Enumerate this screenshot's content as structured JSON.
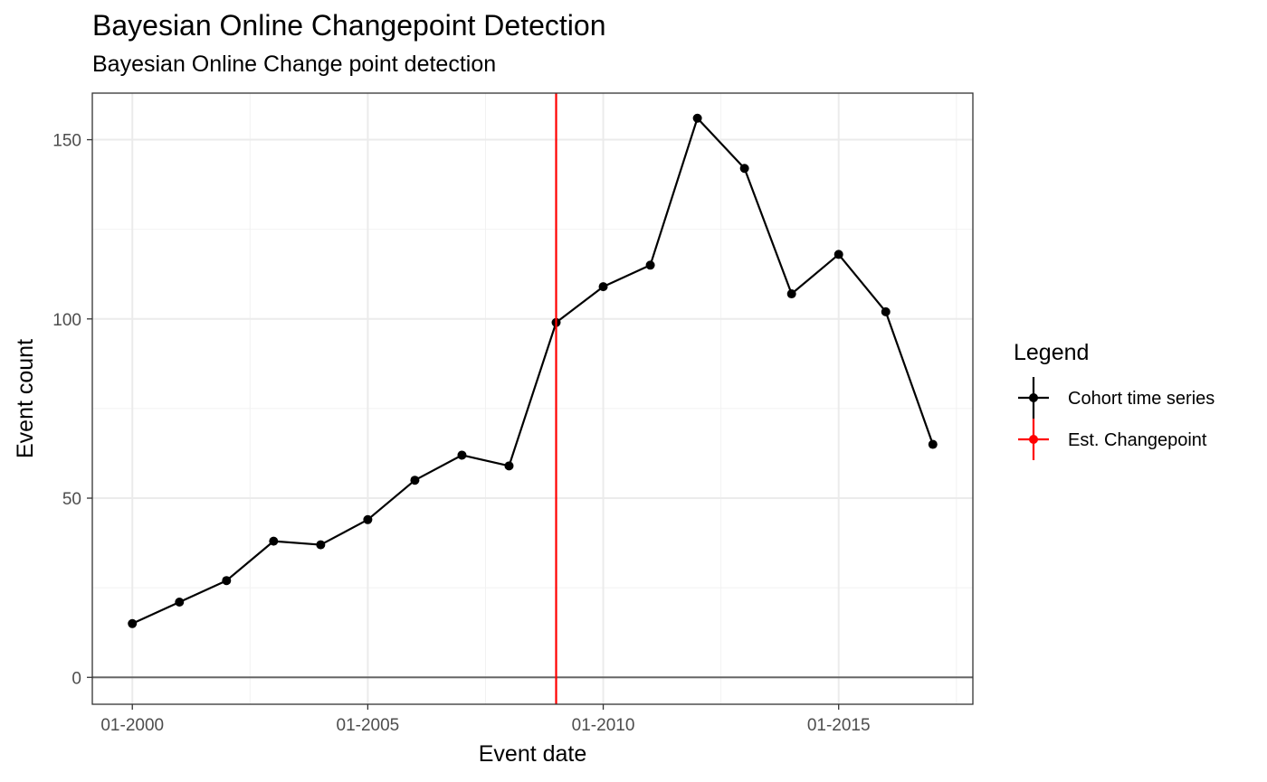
{
  "chart_data": {
    "type": "line",
    "title": "Bayesian Online Changepoint Detection",
    "subtitle": "Bayesian Online Change point detection",
    "xlabel": "Event date",
    "ylabel": "Event count",
    "x_tick_labels": [
      "01-2000",
      "01-2005",
      "01-2010",
      "01-2015"
    ],
    "y_tick_labels": [
      "0",
      "50",
      "100",
      "150"
    ],
    "ylim": [
      -7.5,
      163
    ],
    "grid": true,
    "legend_position": "right",
    "legend": {
      "title": "Legend",
      "entries": [
        {
          "label": "Cohort time series",
          "color": "#000000"
        },
        {
          "label": "Est. Changepoint",
          "color": "#ff0000"
        }
      ]
    },
    "series": [
      {
        "name": "Cohort time series",
        "color": "#000000",
        "x": [
          "01-2000",
          "01-2001",
          "01-2002",
          "01-2003",
          "01-2004",
          "01-2005",
          "01-2006",
          "01-2007",
          "01-2008",
          "01-2009",
          "01-2010",
          "01-2011",
          "01-2012",
          "01-2013",
          "01-2014",
          "01-2015",
          "01-2016",
          "01-2017"
        ],
        "values": [
          15,
          21,
          27,
          38,
          37,
          44,
          55,
          62,
          59,
          99,
          109,
          115,
          156,
          142,
          107,
          118,
          102,
          65
        ]
      }
    ],
    "changepoint": {
      "x": "01-2009",
      "color": "#ff0000"
    },
    "hline": {
      "y": 0,
      "color": "#666666"
    }
  }
}
